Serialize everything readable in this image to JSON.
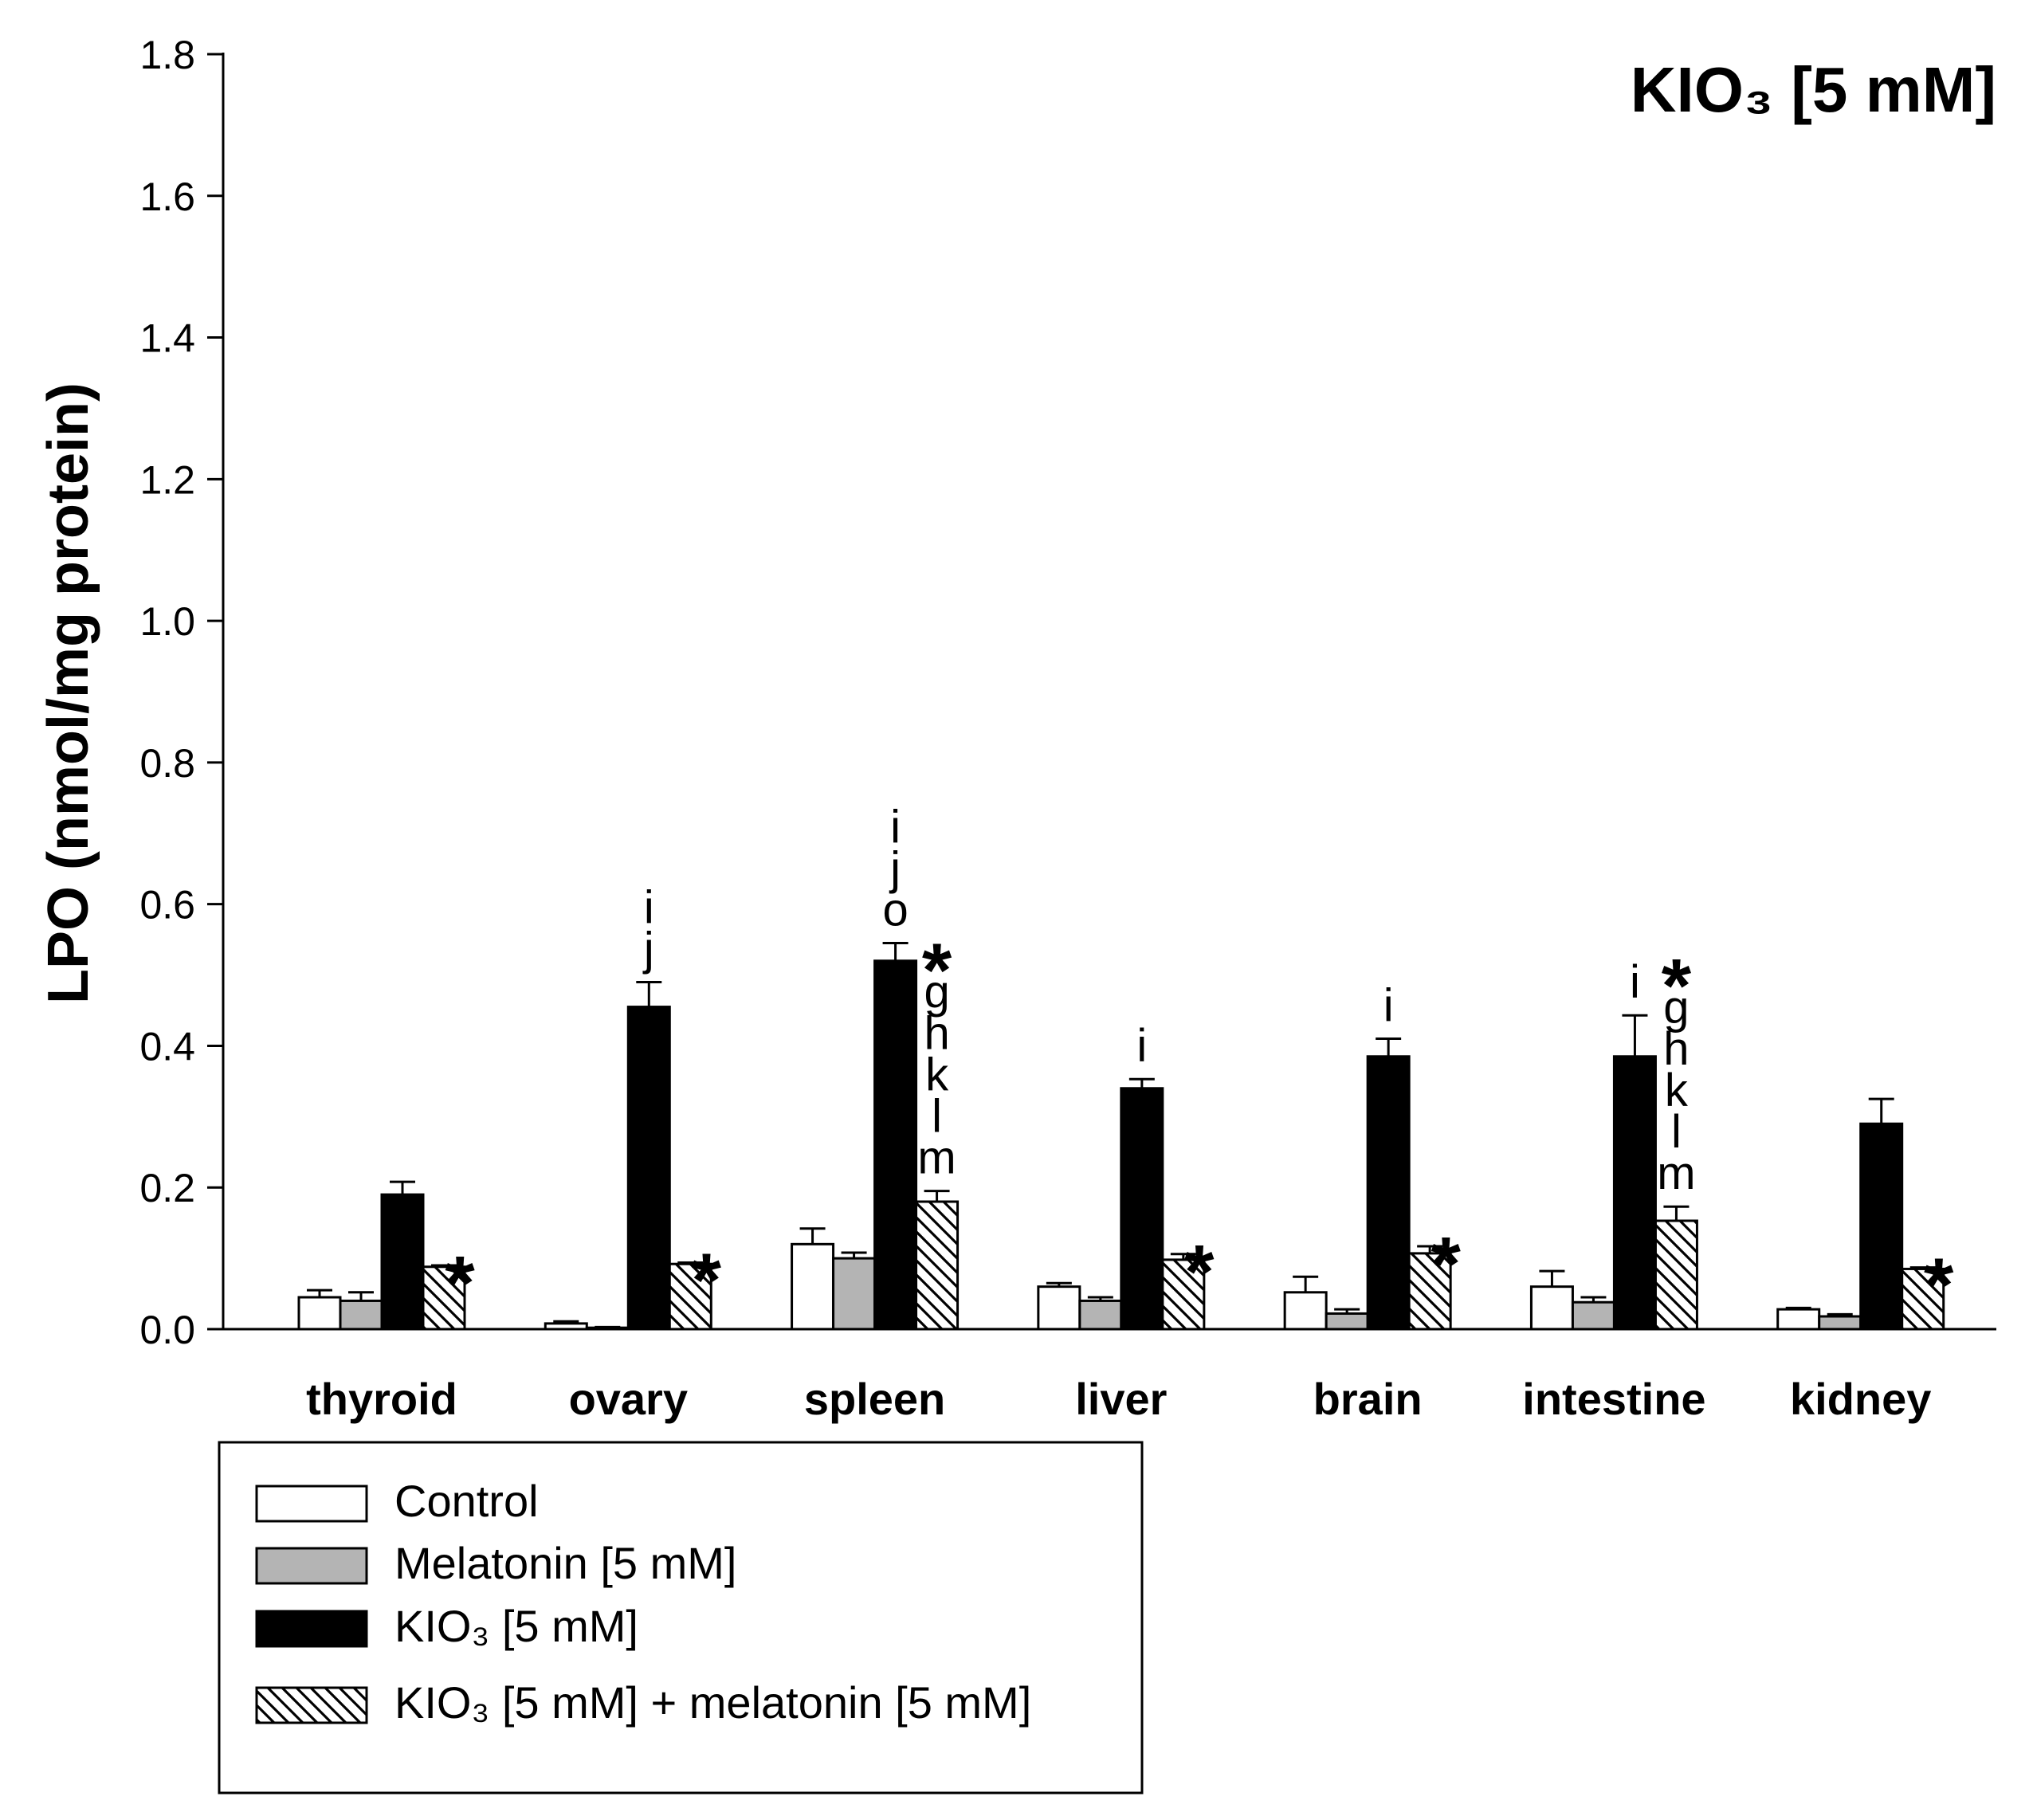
{
  "chart_data": {
    "type": "bar",
    "title": "KIO₃ [5 mM]",
    "xlabel": "",
    "ylabel": "LPO (nmol/mg protein)",
    "ylim": [
      0.0,
      1.8
    ],
    "yticks": [
      "0.0",
      "0.2",
      "0.4",
      "0.6",
      "0.8",
      "1.0",
      "1.2",
      "1.4",
      "1.6",
      "1.8"
    ],
    "categories": [
      "thyroid",
      "ovary",
      "spleen",
      "liver",
      "brain",
      "intestine",
      "kidney"
    ],
    "series": [
      {
        "name": "Control",
        "fill": "white",
        "values": [
          0.045,
          0.008,
          0.12,
          0.06,
          0.052,
          0.06,
          0.028
        ],
        "errors": [
          0.01,
          0.003,
          0.022,
          0.005,
          0.022,
          0.022,
          0.002
        ]
      },
      {
        "name": "Melatonin [5 mM]",
        "fill": "gray",
        "values": [
          0.04,
          0.002,
          0.1,
          0.04,
          0.022,
          0.038,
          0.018
        ],
        "errors": [
          0.012,
          0.001,
          0.008,
          0.005,
          0.006,
          0.007,
          0.003
        ]
      },
      {
        "name": "KIO₃ [5 mM]",
        "fill": "black",
        "values": [
          0.19,
          0.455,
          0.52,
          0.34,
          0.385,
          0.385,
          0.29
        ],
        "errors": [
          0.018,
          0.035,
          0.025,
          0.013,
          0.025,
          0.058,
          0.035
        ]
      },
      {
        "name": "KIO₃ [5 mM] + melatonin [5 mM]",
        "fill": "hatched",
        "values": [
          0.088,
          0.092,
          0.18,
          0.098,
          0.107,
          0.153,
          0.085
        ],
        "errors": [
          0.002,
          0.002,
          0.015,
          0.008,
          0.01,
          0.02,
          0.002
        ]
      }
    ],
    "annotations": [
      {
        "category": "thyroid",
        "series": 3,
        "labels": [
          "*"
        ]
      },
      {
        "category": "ovary",
        "series": 2,
        "labels": [
          "i",
          "j"
        ]
      },
      {
        "category": "ovary",
        "series": 3,
        "labels": [
          "*"
        ]
      },
      {
        "category": "spleen",
        "series": 2,
        "labels": [
          "i",
          "j",
          "o"
        ]
      },
      {
        "category": "spleen",
        "series": 3,
        "labels": [
          "*",
          "g",
          "h",
          "k",
          "l",
          "m"
        ]
      },
      {
        "category": "liver",
        "series": 2,
        "labels": [
          "i"
        ]
      },
      {
        "category": "liver",
        "series": 3,
        "labels": [
          "*"
        ]
      },
      {
        "category": "brain",
        "series": 2,
        "labels": [
          "i"
        ]
      },
      {
        "category": "brain",
        "series": 3,
        "labels": [
          "*"
        ]
      },
      {
        "category": "intestine",
        "series": 2,
        "labels": [
          "i"
        ]
      },
      {
        "category": "intestine",
        "series": 3,
        "labels": [
          "*",
          "g",
          "h",
          "k",
          "l",
          "m"
        ]
      },
      {
        "category": "kidney",
        "series": 3,
        "labels": [
          "*"
        ]
      }
    ],
    "legend": {
      "placement": "bottom-left",
      "entries": [
        "Control",
        "Melatonin [5 mM]",
        "KIO₃ [5 mM]",
        "KIO₃ [5 mM] + melatonin [5 mM]"
      ]
    },
    "colors": {
      "axis": "#000000",
      "gray_bar": "#b4b4b4",
      "black_bar": "#000000",
      "white_bar": "#ffffff"
    }
  }
}
